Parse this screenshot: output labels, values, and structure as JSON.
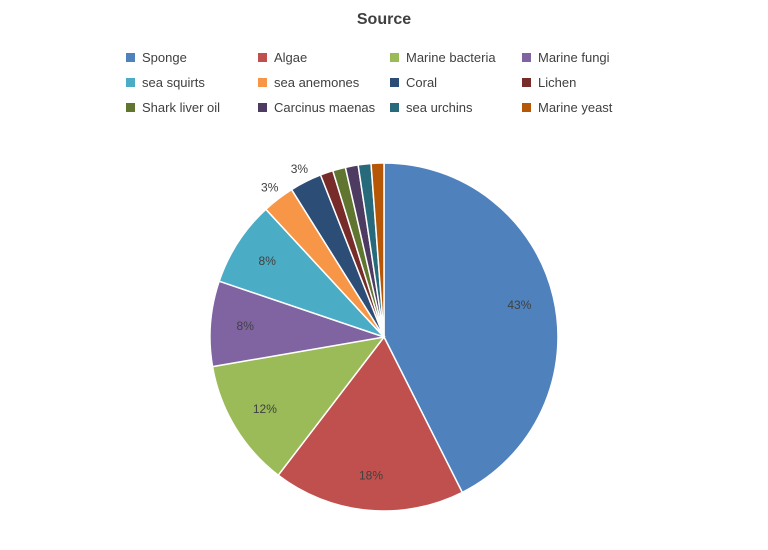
{
  "chart_data": {
    "type": "pie",
    "title": "Source",
    "legend_position": "top",
    "categories": [
      "Sponge",
      "Algae",
      "Marine bacteria",
      "Marine fungi",
      "sea squirts",
      "sea anemones",
      "Coral",
      "Lichen",
      "Shark liver oil",
      "Carcinus maenas",
      "sea urchins",
      "Marine yeast"
    ],
    "values": [
      43,
      18,
      12,
      8,
      8,
      3,
      3,
      1.2,
      1.2,
      1.2,
      1.2,
      1.2
    ],
    "data_labels": [
      "43%",
      "18%",
      "12%",
      "8%",
      "8%",
      "3%",
      "3%",
      "",
      "",
      "",
      "",
      ""
    ],
    "colors": [
      "#4f81bd",
      "#c0504d",
      "#9bbb59",
      "#8064a2",
      "#4bacc6",
      "#f79646",
      "#2c4d75",
      "#772c2a",
      "#5f7530",
      "#4d3b62",
      "#276a7c",
      "#b65708"
    ]
  }
}
